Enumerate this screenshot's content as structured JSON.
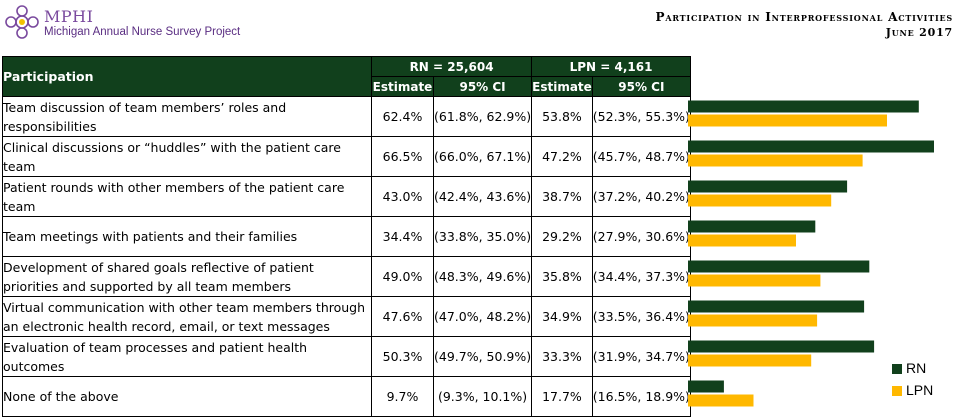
{
  "header": {
    "logo_name": "MPHI",
    "logo_subtitle": "Michigan Annual Nurse Survey Project",
    "title_line1": "Participation in Interprofessional Activities",
    "title_line2": "June 2017"
  },
  "table": {
    "col_participation": "Participation",
    "group_rn": "RN = 25,604",
    "group_lpn": "LPN = 4,161",
    "col_estimate": "Estimate",
    "col_ci": "95% CI"
  },
  "colors": {
    "rn": "#11401c",
    "lpn": "#ffb800",
    "header_bg": "#11401c"
  },
  "chart_data": {
    "type": "bar",
    "orientation": "horizontal",
    "categories": [
      "Team discussion of team members’ roles and responsibilities",
      "Clinical discussions or “huddles” with the patient care team",
      "Patient rounds with other members of the patient care team",
      "Team meetings with patients and their families",
      "Development of shared goals reflective of patient priorities and supported by all team members",
      "Virtual communication with other team members through an electronic health record, email, or text messages",
      "Evaluation of team processes and patient health outcomes",
      "None of the above"
    ],
    "series": [
      {
        "name": "RN",
        "values": [
          62.4,
          66.5,
          43.0,
          34.4,
          49.0,
          47.6,
          50.3,
          9.7
        ],
        "estimate_text": [
          "62.4%",
          "66.5%",
          "43.0%",
          "34.4%",
          "49.0%",
          "47.6%",
          "50.3%",
          "9.7%"
        ],
        "ci_text": [
          "(61.8%, 62.9%)",
          "(66.0%, 67.1%)",
          "(42.4%, 43.6%)",
          "(33.8%, 35.0%)",
          "(48.3%, 49.6%)",
          "(47.0%, 48.2%)",
          "(49.7%, 50.9%)",
          "(9.3%, 10.1%)"
        ]
      },
      {
        "name": "LPN",
        "values": [
          53.8,
          47.2,
          38.7,
          29.2,
          35.8,
          34.9,
          33.3,
          17.7
        ],
        "estimate_text": [
          "53.8%",
          "47.2%",
          "38.7%",
          "29.2%",
          "35.8%",
          "34.9%",
          "33.3%",
          "17.7%"
        ],
        "ci_text": [
          "(52.3%, 55.3%)",
          "(45.7%, 48.7%)",
          "(37.2%, 40.2%)",
          "(27.9%, 30.6%)",
          "(34.4%, 37.3%)",
          "(33.5%, 36.4%)",
          "(31.9%, 34.7%)",
          "(16.5%, 18.9%)"
        ]
      }
    ],
    "xlim": [
      0,
      100
    ],
    "grid": false,
    "legend": "right"
  }
}
